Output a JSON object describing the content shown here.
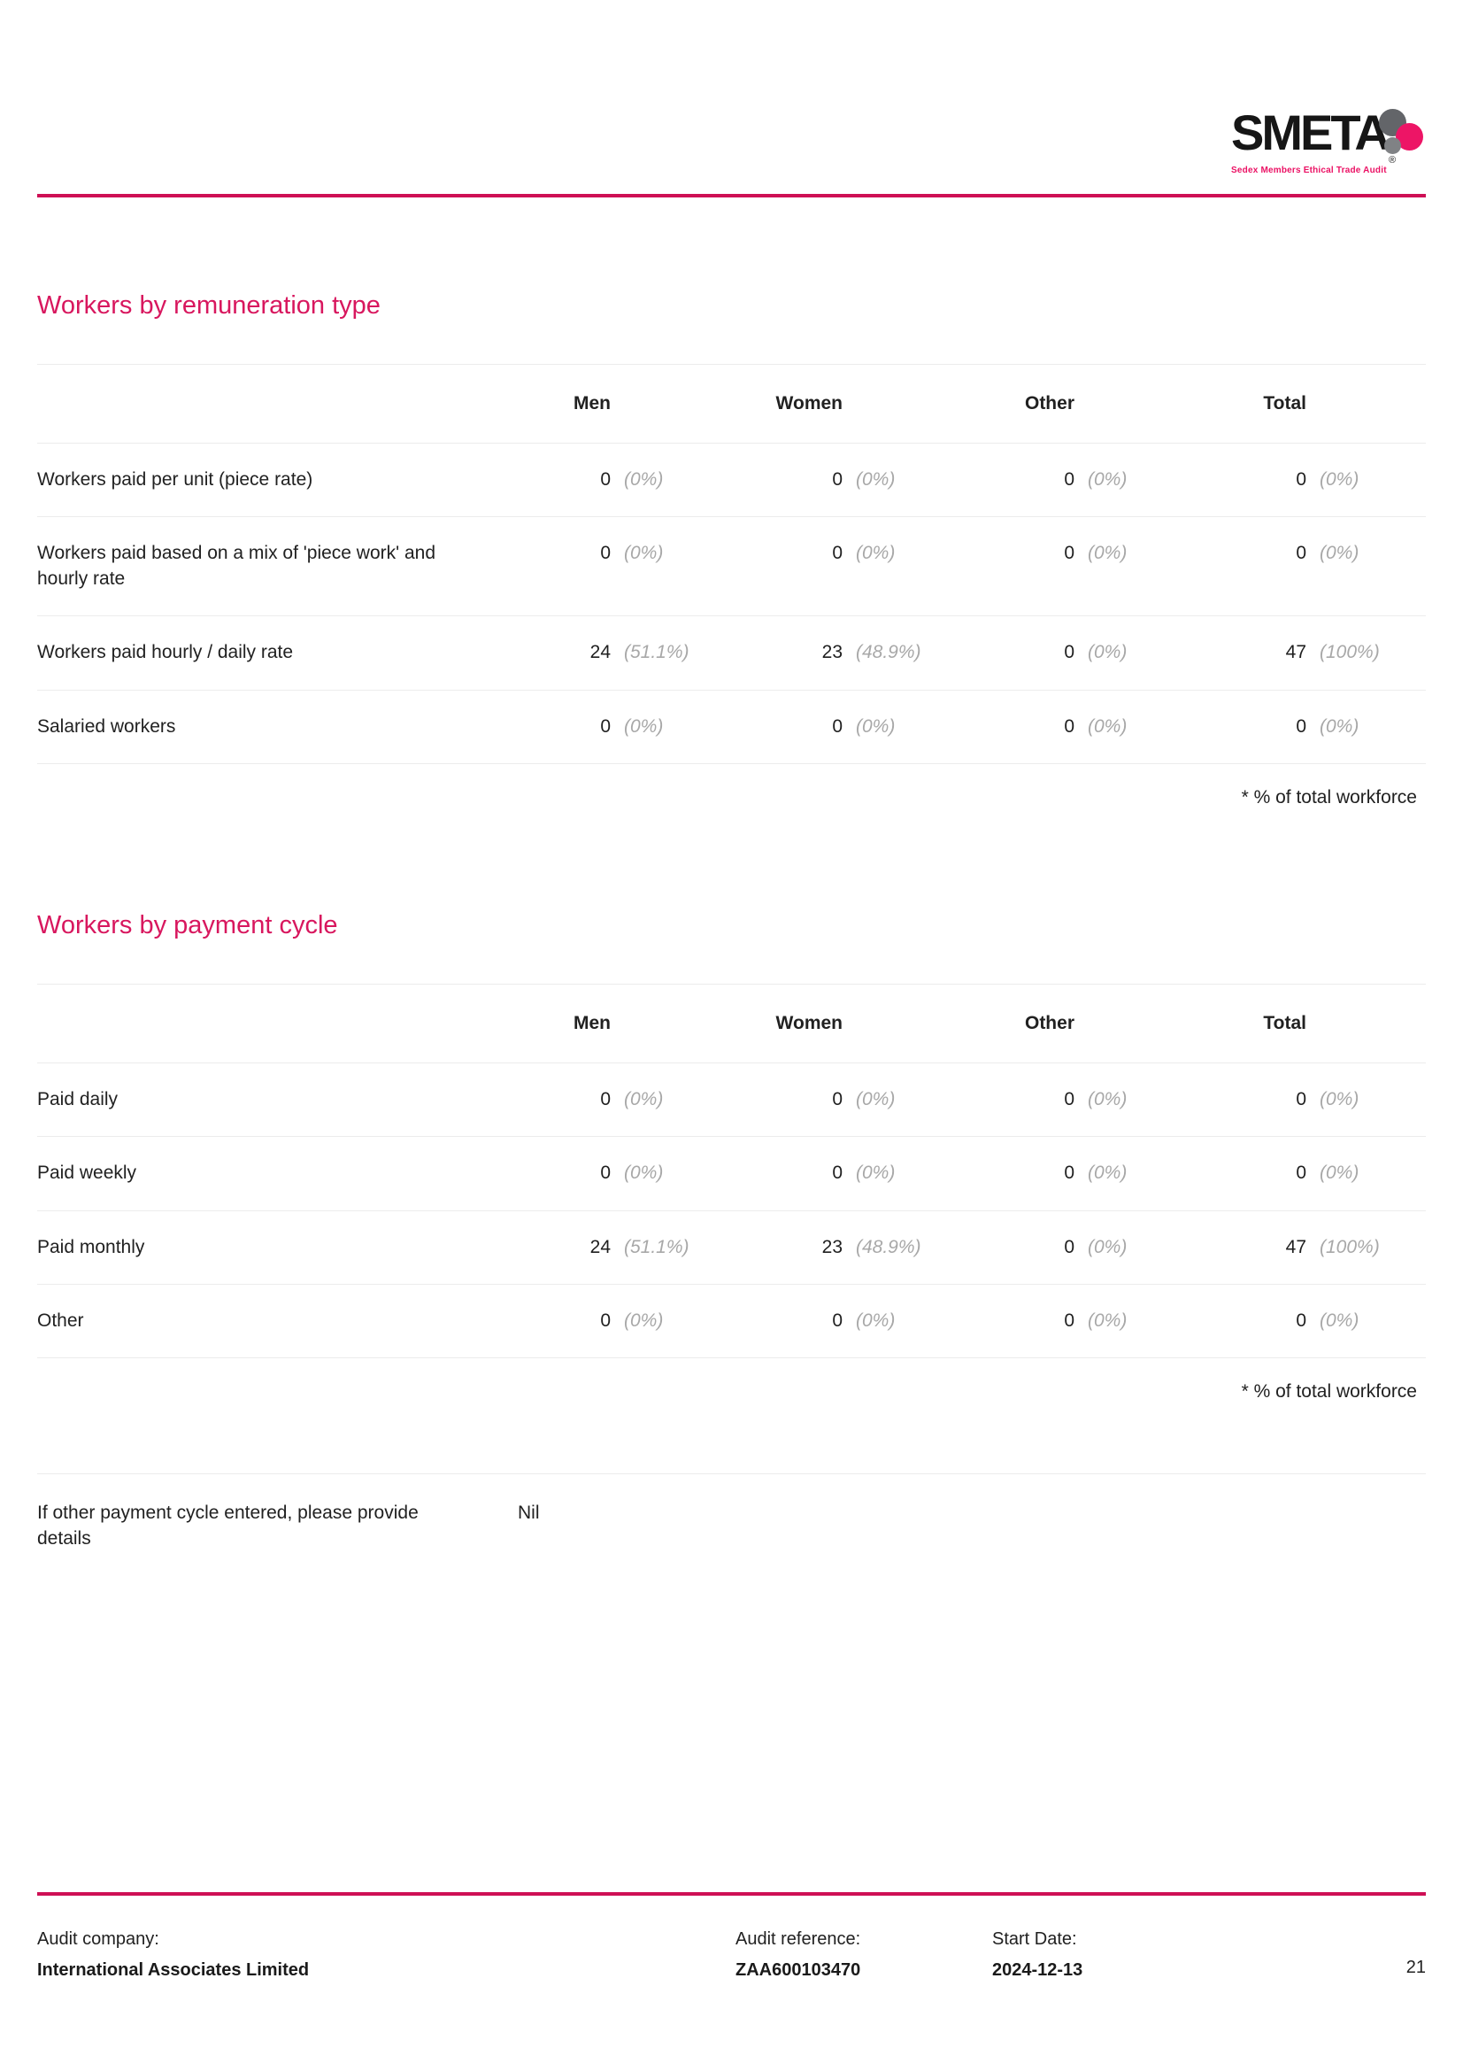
{
  "logo": {
    "wordmark": "SMETA",
    "registered": "®",
    "tagline": "Sedex Members Ethical Trade Audit"
  },
  "columns": [
    "Men",
    "Women",
    "Other",
    "Total"
  ],
  "sections": [
    {
      "title": "Workers by remuneration type",
      "rows": [
        {
          "label": "Workers paid per unit (piece rate)",
          "cells": [
            {
              "value": "0",
              "pct": "(0%)"
            },
            {
              "value": "0",
              "pct": "(0%)"
            },
            {
              "value": "0",
              "pct": "(0%)"
            },
            {
              "value": "0",
              "pct": "(0%)"
            }
          ]
        },
        {
          "label": "Workers paid based on a mix of 'piece work' and hourly rate",
          "cells": [
            {
              "value": "0",
              "pct": "(0%)"
            },
            {
              "value": "0",
              "pct": "(0%)"
            },
            {
              "value": "0",
              "pct": "(0%)"
            },
            {
              "value": "0",
              "pct": "(0%)"
            }
          ]
        },
        {
          "label": "Workers paid hourly / daily rate",
          "cells": [
            {
              "value": "24",
              "pct": "(51.1%)"
            },
            {
              "value": "23",
              "pct": "(48.9%)"
            },
            {
              "value": "0",
              "pct": "(0%)"
            },
            {
              "value": "47",
              "pct": "(100%)"
            }
          ]
        },
        {
          "label": "Salaried workers",
          "cells": [
            {
              "value": "0",
              "pct": "(0%)"
            },
            {
              "value": "0",
              "pct": "(0%)"
            },
            {
              "value": "0",
              "pct": "(0%)"
            },
            {
              "value": "0",
              "pct": "(0%)"
            }
          ]
        }
      ],
      "footnote": "* % of total workforce"
    },
    {
      "title": "Workers by payment cycle",
      "rows": [
        {
          "label": "Paid daily",
          "cells": [
            {
              "value": "0",
              "pct": "(0%)"
            },
            {
              "value": "0",
              "pct": "(0%)"
            },
            {
              "value": "0",
              "pct": "(0%)"
            },
            {
              "value": "0",
              "pct": "(0%)"
            }
          ]
        },
        {
          "label": "Paid weekly",
          "cells": [
            {
              "value": "0",
              "pct": "(0%)"
            },
            {
              "value": "0",
              "pct": "(0%)"
            },
            {
              "value": "0",
              "pct": "(0%)"
            },
            {
              "value": "0",
              "pct": "(0%)"
            }
          ]
        },
        {
          "label": "Paid monthly",
          "cells": [
            {
              "value": "24",
              "pct": "(51.1%)"
            },
            {
              "value": "23",
              "pct": "(48.9%)"
            },
            {
              "value": "0",
              "pct": "(0%)"
            },
            {
              "value": "47",
              "pct": "(100%)"
            }
          ]
        },
        {
          "label": "Other",
          "cells": [
            {
              "value": "0",
              "pct": "(0%)"
            },
            {
              "value": "0",
              "pct": "(0%)"
            },
            {
              "value": "0",
              "pct": "(0%)"
            },
            {
              "value": "0",
              "pct": "(0%)"
            }
          ]
        }
      ],
      "footnote": "* % of total workforce",
      "question": {
        "label": "If other payment cycle entered, please provide details",
        "answer": "Nil"
      }
    }
  ],
  "footer": {
    "audit_company_label": "Audit company:",
    "audit_company": "International Associates Limited",
    "audit_reference_label": "Audit reference:",
    "audit_reference": "ZAA600103470",
    "start_date_label": "Start Date:",
    "start_date": "2024-12-13",
    "page_number": "21"
  },
  "colors": {
    "accent_rule": "#ce0f55",
    "section_title": "#d8175e",
    "logo_pink": "#ed1566",
    "logo_gray": "#636569",
    "percent_gray": "#a8a8a8"
  }
}
